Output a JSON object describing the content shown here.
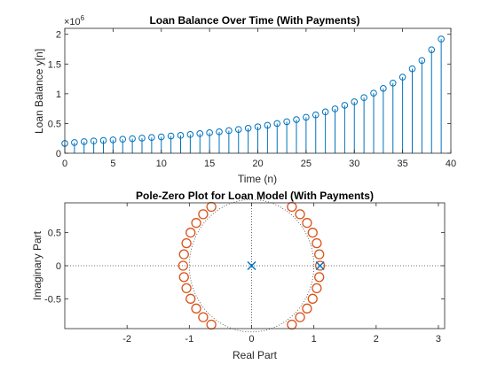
{
  "chart_data": [
    {
      "type": "stem",
      "title": "Loan Balance Over Time (With Payments)",
      "xlabel": "Time (n)",
      "ylabel": "Loan Balance y[n]",
      "exponent_label": "×10",
      "exponent_power": "6",
      "xlim": [
        0,
        40
      ],
      "ylim": [
        0,
        2100000
      ],
      "xticks": [
        0,
        5,
        10,
        15,
        20,
        25,
        30,
        35,
        40
      ],
      "xtick_labels": [
        "0",
        "5",
        "10",
        "15",
        "20",
        "25",
        "30",
        "35",
        "40"
      ],
      "yticks": [
        0,
        500000,
        1000000,
        1500000,
        2000000
      ],
      "ytick_labels": [
        "0",
        "0.5",
        "1",
        "1.5",
        "2"
      ],
      "x": [
        0,
        1,
        2,
        3,
        4,
        5,
        6,
        7,
        8,
        9,
        10,
        11,
        12,
        13,
        14,
        15,
        16,
        17,
        18,
        19,
        20,
        21,
        22,
        23,
        24,
        25,
        26,
        27,
        28,
        29,
        30,
        31,
        32,
        33,
        34,
        35,
        36,
        37,
        38,
        39
      ],
      "y": [
        165000,
        180000,
        195000,
        205000,
        215000,
        225000,
        235000,
        245000,
        255000,
        265000,
        275000,
        290000,
        300000,
        315000,
        330000,
        345000,
        360000,
        380000,
        400000,
        420000,
        445000,
        470000,
        500000,
        530000,
        565000,
        605000,
        645000,
        695000,
        745000,
        805000,
        865000,
        935000,
        1010000,
        1090000,
        1180000,
        1280000,
        1420000,
        1560000,
        1740000,
        1920000
      ],
      "color": "#0072BD",
      "grid": false
    },
    {
      "type": "pole-zero",
      "title": "Pole-Zero Plot for Loan Model (With Payments)",
      "xlabel": "Real Part",
      "ylabel": "Imaginary Part",
      "xlim": [
        -3,
        3.1
      ],
      "ylim": [
        -0.95,
        0.95
      ],
      "xticks": [
        -2,
        -1,
        0,
        1,
        2,
        3
      ],
      "xtick_labels": [
        "-2",
        "-1",
        "0",
        "1",
        "2",
        "3"
      ],
      "yticks": [
        -0.5,
        0,
        0.5
      ],
      "ytick_labels": [
        "-0.5",
        "0",
        "0.5"
      ],
      "zeros_count": 40,
      "zero_radius": 1.1,
      "poles": [
        [
          0,
          0
        ],
        [
          1.1,
          0
        ]
      ],
      "zero_color": "#D95319",
      "pole_color": "#0072BD",
      "grid": false
    }
  ]
}
